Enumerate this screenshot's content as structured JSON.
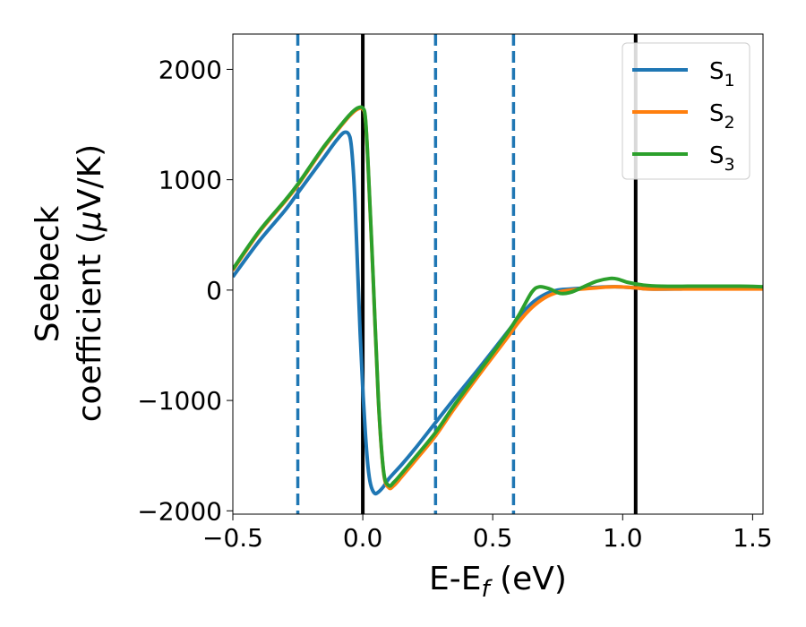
{
  "chart_data": {
    "type": "line",
    "xlabel": {
      "base": "E-E",
      "sub": "f",
      "rest": " (eV)"
    },
    "ylabel": {
      "line1": "Seebeck",
      "line2_pre": "coefficient  (",
      "mu": "μ",
      "line2_post": "V/K)"
    },
    "xlim": [
      -0.5,
      1.54
    ],
    "ylim": [
      -2030,
      2320
    ],
    "xticks": [
      -0.5,
      0.0,
      0.5,
      1.0,
      1.5
    ],
    "xtick_labels": [
      "−0.5",
      "0.0",
      "0.5",
      "1.0",
      "1.5"
    ],
    "yticks": [
      -2000,
      -1000,
      0,
      1000,
      2000
    ],
    "ytick_labels": [
      "−2000",
      "−1000",
      "0",
      "1000",
      "2000"
    ],
    "grid": false,
    "legend_placement": "top-right",
    "vlines_solid": [
      0.0,
      1.05
    ],
    "vlines_dashed": [
      -0.25,
      0.28,
      0.58
    ],
    "vline_solid_color": "#000000",
    "vline_dashed_color": "#1f77b4",
    "series": [
      {
        "name": "S",
        "sub": "1",
        "color": "#1f77b4",
        "x": [
          -0.5,
          -0.4,
          -0.3,
          -0.25,
          -0.2,
          -0.15,
          -0.1,
          -0.07,
          -0.05,
          -0.04,
          -0.03,
          -0.02,
          -0.01,
          0.0,
          0.01,
          0.02,
          0.03,
          0.045,
          0.06,
          0.08,
          0.1,
          0.15,
          0.2,
          0.28,
          0.35,
          0.45,
          0.55,
          0.6,
          0.65,
          0.7,
          0.75,
          0.8,
          0.9,
          0.97,
          1.05,
          1.1,
          1.2,
          1.3,
          1.4,
          1.54
        ],
        "y": [
          120,
          440,
          720,
          880,
          1040,
          1200,
          1360,
          1430,
          1390,
          1200,
          800,
          200,
          -400,
          -900,
          -1300,
          -1600,
          -1760,
          -1840,
          -1830,
          -1780,
          -1710,
          -1580,
          -1440,
          -1200,
          -990,
          -700,
          -400,
          -250,
          -120,
          -40,
          0,
          10,
          25,
          30,
          20,
          10,
          10,
          15,
          15,
          15
        ]
      },
      {
        "name": "S",
        "sub": "2",
        "color": "#ff7f0e",
        "x": [
          -0.5,
          -0.4,
          -0.3,
          -0.25,
          -0.2,
          -0.15,
          -0.1,
          -0.05,
          -0.02,
          0.0,
          0.01,
          0.02,
          0.04,
          0.06,
          0.08,
          0.1,
          0.12,
          0.15,
          0.2,
          0.28,
          0.35,
          0.45,
          0.55,
          0.6,
          0.65,
          0.7,
          0.75,
          0.8,
          0.9,
          0.97,
          1.05,
          1.1,
          1.2,
          1.3,
          1.4,
          1.54
        ],
        "y": [
          180,
          520,
          800,
          950,
          1120,
          1290,
          1440,
          1580,
          1640,
          1640,
          1550,
          1150,
          100,
          -1000,
          -1650,
          -1790,
          -1770,
          -1690,
          -1550,
          -1320,
          -1080,
          -760,
          -450,
          -290,
          -160,
          -70,
          -20,
          0,
          20,
          30,
          20,
          10,
          10,
          10,
          10,
          10
        ]
      },
      {
        "name": "S",
        "sub": "3",
        "color": "#2ca02c",
        "x": [
          -0.5,
          -0.4,
          -0.3,
          -0.25,
          -0.2,
          -0.15,
          -0.1,
          -0.05,
          -0.02,
          0.0,
          0.01,
          0.02,
          0.04,
          0.06,
          0.08,
          0.1,
          0.12,
          0.15,
          0.2,
          0.28,
          0.35,
          0.45,
          0.55,
          0.6,
          0.65,
          0.68,
          0.72,
          0.76,
          0.8,
          0.85,
          0.9,
          0.95,
          0.98,
          1.02,
          1.08,
          1.15,
          1.25,
          1.35,
          1.45,
          1.54
        ],
        "y": [
          190,
          530,
          810,
          960,
          1130,
          1300,
          1450,
          1590,
          1650,
          1650,
          1560,
          1160,
          110,
          -990,
          -1640,
          -1770,
          -1740,
          -1660,
          -1520,
          -1290,
          -1050,
          -730,
          -410,
          -230,
          -20,
          30,
          10,
          -30,
          -20,
          30,
          80,
          105,
          100,
          70,
          45,
          35,
          35,
          35,
          35,
          30
        ]
      }
    ]
  }
}
